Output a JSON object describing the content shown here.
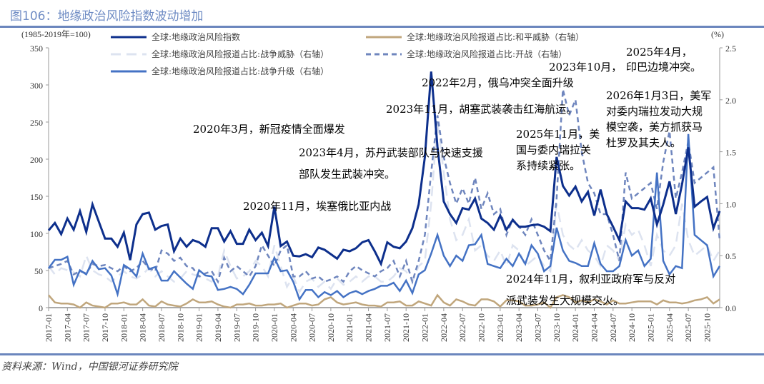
{
  "title": "图106：地缘政治风险指数波动增加",
  "source": "资料来源：Wind，中国银河证券研究院",
  "chart_data": {
    "type": "line",
    "left_unit": "(1985-2019年=100)",
    "right_unit": "(%)",
    "ylim_left": [
      0,
      350
    ],
    "yticks_left": [
      0,
      50,
      100,
      150,
      200,
      250,
      300,
      350
    ],
    "ylim_right": [
      0,
      2.5
    ],
    "yticks_right": [
      "0.0",
      "0.5",
      "1.0",
      "1.5",
      "2.0",
      "2.5"
    ],
    "x_start": "2017-01",
    "x_end": "2025-12",
    "xticks": [
      "2017-01",
      "2017-04",
      "2017-07",
      "2017-10",
      "2018-01",
      "2018-04",
      "2018-07",
      "2018-10",
      "2019-01",
      "2019-04",
      "2019-07",
      "2019-10",
      "2020-01",
      "2020-04",
      "2020-07",
      "2020-10",
      "2021-01",
      "2021-04",
      "2021-07",
      "2021-10",
      "2022-01",
      "2022-04",
      "2022-07",
      "2022-10",
      "2023-01",
      "2023-04",
      "2023-07",
      "2023-10",
      "2024-01",
      "2024-04",
      "2024-07",
      "2024-10",
      "2025-01",
      "2025-04",
      "2025-07",
      "2025-10"
    ],
    "series": [
      {
        "name": "全球:地缘政治风险指数",
        "axis": "left",
        "color": "#0d2f8c",
        "style": "solid",
        "values": [
          104,
          114,
          99,
          120,
          105,
          130,
          102,
          139,
          116,
          93,
          93,
          82,
          101,
          64,
          112,
          126,
          128,
          105,
          110,
          112,
          76,
          93,
          82,
          91,
          88,
          82,
          107,
          107,
          89,
          103,
          86,
          86,
          105,
          91,
          101,
          83,
          136,
          83,
          89,
          70,
          69,
          72,
          68,
          81,
          78,
          72,
          66,
          78,
          76,
          80,
          88,
          91,
          76,
          59,
          88,
          82,
          80,
          89,
          107,
          139,
          203,
          318,
          217,
          143,
          126,
          114,
          134,
          132,
          147,
          120,
          114,
          105,
          124,
          105,
          118,
          109,
          109,
          111,
          112,
          109,
          103,
          203,
          164,
          151,
          163,
          143,
          156,
          124,
          159,
          126,
          109,
          91,
          143,
          134,
          134,
          132,
          147,
          112,
          139,
          170,
          126,
          166,
          216,
          136,
          143,
          149,
          107,
          130
        ]
      },
      {
        "name": "全球:地缘政治风险报道占比:和平威胁（右轴）",
        "axis": "right",
        "color": "#c0a67c",
        "style": "solid",
        "values": [
          0.12,
          0.05,
          0.04,
          0.04,
          0.03,
          0.0,
          0.05,
          0.02,
          0.01,
          0.0,
          0.04,
          0.04,
          0.05,
          0.03,
          0.03,
          0.08,
          0.02,
          0.01,
          0.06,
          0.03,
          0.02,
          0.01,
          0.04,
          0.08,
          0.05,
          0.05,
          0.06,
          0.03,
          0.01,
          0.0,
          0.03,
          0.03,
          0.04,
          0.02,
          0.02,
          0.03,
          0.03,
          0.04,
          0.0,
          0.02,
          0.04,
          0.04,
          0.02,
          0.03,
          0.08,
          0.1,
          0.05,
          0.03,
          0.04,
          0.05,
          0.03,
          0.02,
          0.02,
          0.01,
          0.05,
          0.05,
          0.06,
          0.02,
          0.02,
          0.06,
          0.04,
          0.02,
          0.12,
          0.05,
          0.02,
          0.08,
          0.06,
          0.03,
          0.02,
          0.08,
          0.08,
          0.06,
          0.01,
          0.07,
          0.07,
          0.06,
          0.02,
          0.02,
          0.03,
          0.05,
          0.0,
          0.1,
          0.12,
          0.1,
          0.05,
          0.07,
          0.05,
          0.08,
          0.06,
          0.03,
          0.07,
          0.04,
          0.04,
          0.05,
          0.06,
          0.06,
          0.06,
          0.03,
          0.07,
          0.05,
          0.05,
          0.04,
          0.05,
          0.07,
          0.08,
          0.1,
          0.04,
          0.08
        ]
      },
      {
        "name": "全球:地缘政治风险报道占比:战争威胁（右轴）",
        "axis": "right",
        "color": "#dde3f0",
        "style": "longdash",
        "values": [
          0.4,
          0.32,
          0.38,
          0.36,
          0.34,
          0.3,
          0.5,
          0.36,
          0.32,
          0.3,
          0.25,
          0.3,
          0.35,
          0.3,
          0.28,
          0.32,
          0.38,
          0.3,
          0.35,
          0.3,
          0.25,
          0.28,
          0.35,
          0.32,
          0.3,
          0.28,
          0.25,
          0.3,
          0.55,
          0.4,
          0.28,
          0.3,
          0.35,
          0.45,
          0.4,
          0.3,
          0.6,
          0.4,
          0.2,
          0.3,
          0.15,
          0.25,
          0.28,
          0.2,
          0.25,
          0.18,
          0.28,
          0.22,
          0.25,
          0.3,
          0.25,
          0.3,
          0.3,
          0.25,
          0.25,
          0.3,
          0.38,
          0.35,
          0.25,
          0.4,
          0.45,
          1.0,
          1.8,
          1.3,
          0.85,
          0.65,
          0.7,
          0.85,
          0.55,
          0.6,
          0.5,
          0.45,
          0.55,
          0.4,
          0.6,
          0.55,
          0.4,
          0.45,
          0.5,
          0.4,
          0.35,
          1.0,
          0.7,
          0.6,
          0.55,
          0.65,
          0.55,
          0.5,
          0.4,
          0.6,
          0.55,
          0.45,
          0.8,
          0.7,
          0.75,
          0.6,
          0.4,
          0.7,
          0.55,
          0.5,
          0.6,
          1.0,
          0.65,
          0.5,
          0.55,
          0.6,
          0.45,
          0.55
        ]
      },
      {
        "name": "全球:地缘政治风险报道占比:开战（右轴）",
        "axis": "right",
        "color": "#6f86be",
        "style": "dash",
        "values": [
          0.38,
          0.4,
          0.42,
          0.45,
          0.32,
          0.35,
          0.33,
          0.42,
          0.4,
          0.41,
          0.38,
          0.35,
          0.4,
          0.35,
          0.38,
          0.45,
          0.38,
          0.35,
          0.55,
          0.52,
          0.45,
          0.48,
          0.4,
          0.38,
          0.3,
          0.33,
          0.35,
          0.25,
          0.48,
          0.35,
          0.4,
          0.35,
          0.3,
          0.4,
          0.6,
          0.5,
          0.4,
          0.55,
          0.6,
          0.3,
          0.3,
          0.35,
          0.28,
          0.3,
          0.25,
          0.27,
          0.3,
          0.25,
          0.35,
          0.4,
          0.36,
          0.33,
          0.3,
          0.35,
          0.38,
          0.45,
          0.3,
          0.45,
          0.25,
          0.45,
          0.7,
          1.3,
          1.85,
          1.45,
          1.2,
          1.0,
          1.15,
          1.0,
          1.25,
          0.95,
          1.1,
          0.9,
          0.95,
          0.7,
          0.85,
          0.78,
          0.7,
          0.85,
          0.7,
          0.55,
          0.45,
          1.05,
          2.1,
          1.85,
          2.0,
          1.5,
          1.2,
          1.1,
          0.9,
          0.9,
          0.7,
          0.45,
          1.3,
          1.05,
          1.1,
          1.15,
          1.2,
          0.95,
          1.4,
          1.7,
          1.05,
          1.3,
          1.6,
          1.2,
          1.25,
          1.3,
          1.35,
          0.65
        ]
      },
      {
        "name": "全球:地缘政治风险报道占比:战争升级（右轴）",
        "axis": "right",
        "color": "#4472c4",
        "style": "solid",
        "values": [
          0.38,
          0.46,
          0.46,
          0.49,
          0.22,
          0.36,
          0.32,
          0.45,
          0.37,
          0.38,
          0.31,
          0.13,
          0.41,
          0.37,
          0.3,
          0.52,
          0.37,
          0.39,
          0.26,
          0.26,
          0.35,
          0.29,
          0.23,
          0.18,
          0.36,
          0.31,
          0.3,
          0.17,
          0.18,
          0.2,
          0.18,
          0.13,
          0.22,
          0.33,
          0.33,
          0.33,
          0.48,
          0.35,
          0.36,
          0.25,
          0.08,
          0.17,
          0.17,
          0.1,
          0.15,
          0.12,
          0.16,
          0.1,
          0.14,
          0.16,
          0.13,
          0.16,
          0.18,
          0.21,
          0.21,
          0.24,
          0.16,
          0.26,
          0.14,
          0.32,
          0.36,
          0.52,
          0.7,
          0.5,
          0.4,
          0.5,
          0.45,
          0.6,
          0.61,
          0.7,
          0.42,
          0.4,
          0.38,
          0.47,
          0.4,
          0.52,
          0.42,
          0.6,
          0.52,
          0.35,
          0.4,
          0.77,
          0.55,
          0.45,
          0.43,
          0.4,
          0.4,
          0.62,
          0.42,
          0.35,
          0.35,
          0.4,
          0.65,
          0.5,
          0.55,
          0.4,
          0.47,
          1.3,
          0.45,
          0.32,
          0.4,
          0.38,
          1.67,
          0.7,
          0.65,
          0.6,
          0.3,
          0.4
        ]
      }
    ],
    "annotations": [
      "2020年3月，新冠疫情全面爆发",
      "2020年11月，埃塞俄比亚内战",
      "2023年4月，苏丹武装部队与快速支援",
      "部队发生武装冲突。",
      "2022年2月，俄乌冲突全面升级",
      "2023年11月，胡塞武装袭击红海航运。",
      "2023年10月，",
      "2025年4月，",
      "印巴边境冲突。",
      "2025年11月，美",
      "国与委内瑞拉关",
      "系持续紧张。",
      "2026年1月3日，美军",
      "对委内瑞拉发动大规",
      "模空袭，美方抓获马",
      "杜罗及其夫人。",
      "2024年11月，叙利亚政府军与反对",
      "派武装发生大规模交火。"
    ]
  }
}
